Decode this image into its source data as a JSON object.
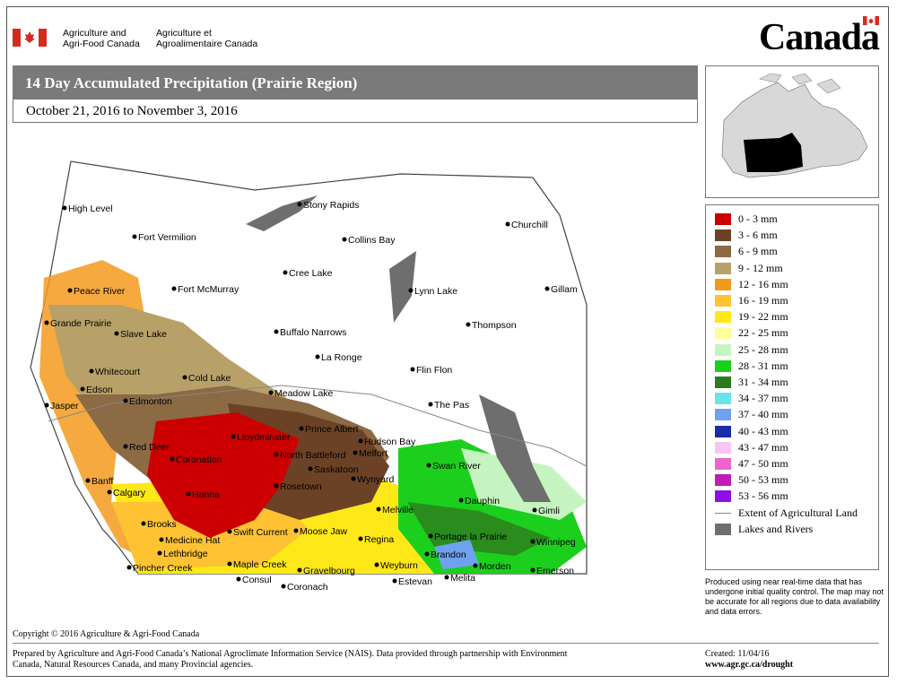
{
  "header": {
    "dept_en_line1": "Agriculture and",
    "dept_en_line2": "Agri-Food Canada",
    "dept_fr_line1": "Agriculture et",
    "dept_fr_line2": "Agroalimentaire Canada",
    "wordmark": "Canada"
  },
  "title": "14 Day Accumulated Precipitation (Prairie Region)",
  "subtitle": "October 21, 2016 to November 3, 2016",
  "legend": [
    {
      "label": "0 - 3 mm",
      "color": "#cc0000"
    },
    {
      "label": "3 - 6 mm",
      "color": "#6b4226"
    },
    {
      "label": "6 - 9 mm",
      "color": "#8b6a44"
    },
    {
      "label": "9 - 12 mm",
      "color": "#b8a168"
    },
    {
      "label": "12 - 16 mm",
      "color": "#f39a1d"
    },
    {
      "label": "16 - 19 mm",
      "color": "#ffc233"
    },
    {
      "label": "19 - 22 mm",
      "color": "#ffe817"
    },
    {
      "label": "22 - 25 mm",
      "color": "#ffff9a"
    },
    {
      "label": "25 - 28 mm",
      "color": "#c6f4c0"
    },
    {
      "label": "28 - 31 mm",
      "color": "#1ccf1c"
    },
    {
      "label": "31 - 34 mm",
      "color": "#2d7a1e"
    },
    {
      "label": "34 - 37 mm",
      "color": "#66e6ea"
    },
    {
      "label": "37 - 40 mm",
      "color": "#6fa2ee"
    },
    {
      "label": "40 - 43 mm",
      "color": "#1a2ca8"
    },
    {
      "label": "43 - 47 mm",
      "color": "#f7c6f3"
    },
    {
      "label": "47 - 50 mm",
      "color": "#ee66cc"
    },
    {
      "label": "50 - 53 mm",
      "color": "#c21bb8"
    },
    {
      "label": "53 - 56 mm",
      "color": "#8c10e6"
    },
    {
      "label": "Extent of Agricultural Land",
      "color": "#888888"
    },
    {
      "label": "Lakes and Rivers",
      "color": "#6e6e6e"
    }
  ],
  "cities": [
    "High Level",
    "Fort Vermilion",
    "Stony Rapids",
    "Churchill",
    "Collins Bay",
    "Peace River",
    "Fort McMurray",
    "Cree Lake",
    "Lynn Lake",
    "Gillam",
    "Grande Prairie",
    "Slave Lake",
    "Buffalo Narrows",
    "Thompson",
    "Whitecourt",
    "La Ronge",
    "Flin Flon",
    "Cold Lake",
    "Edson",
    "Meadow Lake",
    "Jasper",
    "Edmonton",
    "The Pas",
    "Prince Albert",
    "Lloydminster",
    "Hudson Bay",
    "Red Deer",
    "North Battleford",
    "Melfort",
    "Swan River",
    "Coronation",
    "Saskatoon",
    "Wynyard",
    "Banff",
    "Hanna",
    "Rosetown",
    "Calgary",
    "Dauphin",
    "Melville",
    "Gimli",
    "Brooks",
    "Swift Current",
    "Moose Jaw",
    "Regina",
    "Portage la Prairie",
    "Winnipeg",
    "Medicine Hat",
    "Lethbridge",
    "Brandon",
    "Pincher Creek",
    "Maple Creek",
    "Gravelbourg",
    "Weyburn",
    "Morden",
    "Emerson",
    "Consul",
    "Estevan",
    "Melita",
    "Coronach"
  ],
  "note": "Produced using near real-time data that has undergone initial quality control.  The map may not be accurate for all regions due to data availability and data errors.",
  "copyright": "Copyright © 2016 Agriculture & Agri-Food Canada",
  "credit": "Prepared by Agriculture and Agri-Food Canada’s National Agroclimate Information Service (NAIS).   Data provided through partnership with Environment Canada, Natural Resources Canada, and many Provincial agencies.",
  "created": "Created: 11/04/16",
  "url": "www.agr.gc.ca/drought"
}
